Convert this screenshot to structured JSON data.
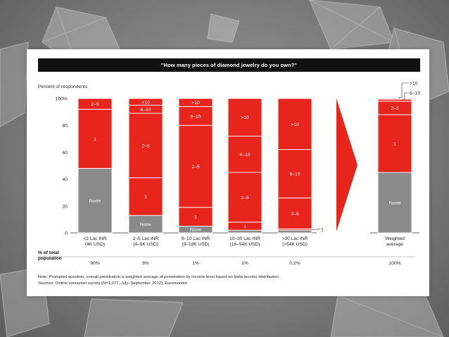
{
  "chart_data": {
    "type": "bar",
    "stacked": true,
    "title": "\"How many pieces of diamond jewelry do you own?\"",
    "ylabel": "Percent of respondents",
    "ylim": [
      0,
      100
    ],
    "yticks": [
      "0",
      "20",
      "40",
      "60",
      "80",
      "100%"
    ],
    "categories": [
      [
        "<2 Lac INR",
        "(4K USD)"
      ],
      [
        "2–5 Lac INR",
        "(4–9K USD)"
      ],
      [
        "5–10 Lac INR",
        "(9–18K USD)"
      ],
      [
        "10–30 Lac INR",
        "(18–54K USD)"
      ],
      [
        ">30 Lac INR",
        "(>54K USD)"
      ],
      [
        "Weighted",
        "average"
      ]
    ],
    "segment_labels": [
      "None",
      "1",
      "2–5",
      "6–10",
      ">10"
    ],
    "bars": [
      {
        "segments": [
          48,
          44,
          8,
          0,
          0
        ]
      },
      {
        "segments": [
          13,
          28,
          48,
          6,
          5
        ]
      },
      {
        "segments": [
          5,
          14,
          61,
          14,
          6
        ]
      },
      {
        "segments": [
          2,
          6,
          37,
          27,
          28
        ]
      },
      {
        "segments": [
          2,
          1,
          23,
          36,
          38
        ]
      },
      {
        "segments": [
          45,
          43,
          10,
          1.5,
          0.5
        ]
      }
    ],
    "inline_labels": [
      [
        "None",
        "1",
        "2–5",
        "",
        ""
      ],
      [
        "None",
        "1",
        "2–5",
        "6–10",
        ">10"
      ],
      [
        "None",
        "1",
        "2–5",
        "6–10",
        ">10"
      ],
      [
        "",
        "1",
        "2–5",
        "6–10",
        ">10"
      ],
      [
        "",
        "",
        "2–5",
        "6–10",
        ">10"
      ],
      [
        "None",
        "1",
        "2–5",
        "",
        ""
      ]
    ],
    "callouts": [
      {
        "bar": 4,
        "label": "1"
      },
      {
        "bar": 5,
        "label": ">10"
      },
      {
        "bar": 5,
        "label": "6–10"
      }
    ],
    "population_header": [
      "% of total",
      "population"
    ],
    "population": [
      "90%",
      "8%",
      "1%",
      "1%",
      "0.2%",
      "100%"
    ],
    "colors": {
      "none": "#8a8a8a",
      "red": "#e8251c",
      "title_bg": "#111111",
      "arrow": "#e8251c"
    },
    "note": "Note: Prompted question; overall penetration is weighted average of penetration by income level based on India income distribution",
    "sources": "Sources: Online consumer survey (N=1,077, July–September 2012); Euromonitor"
  }
}
